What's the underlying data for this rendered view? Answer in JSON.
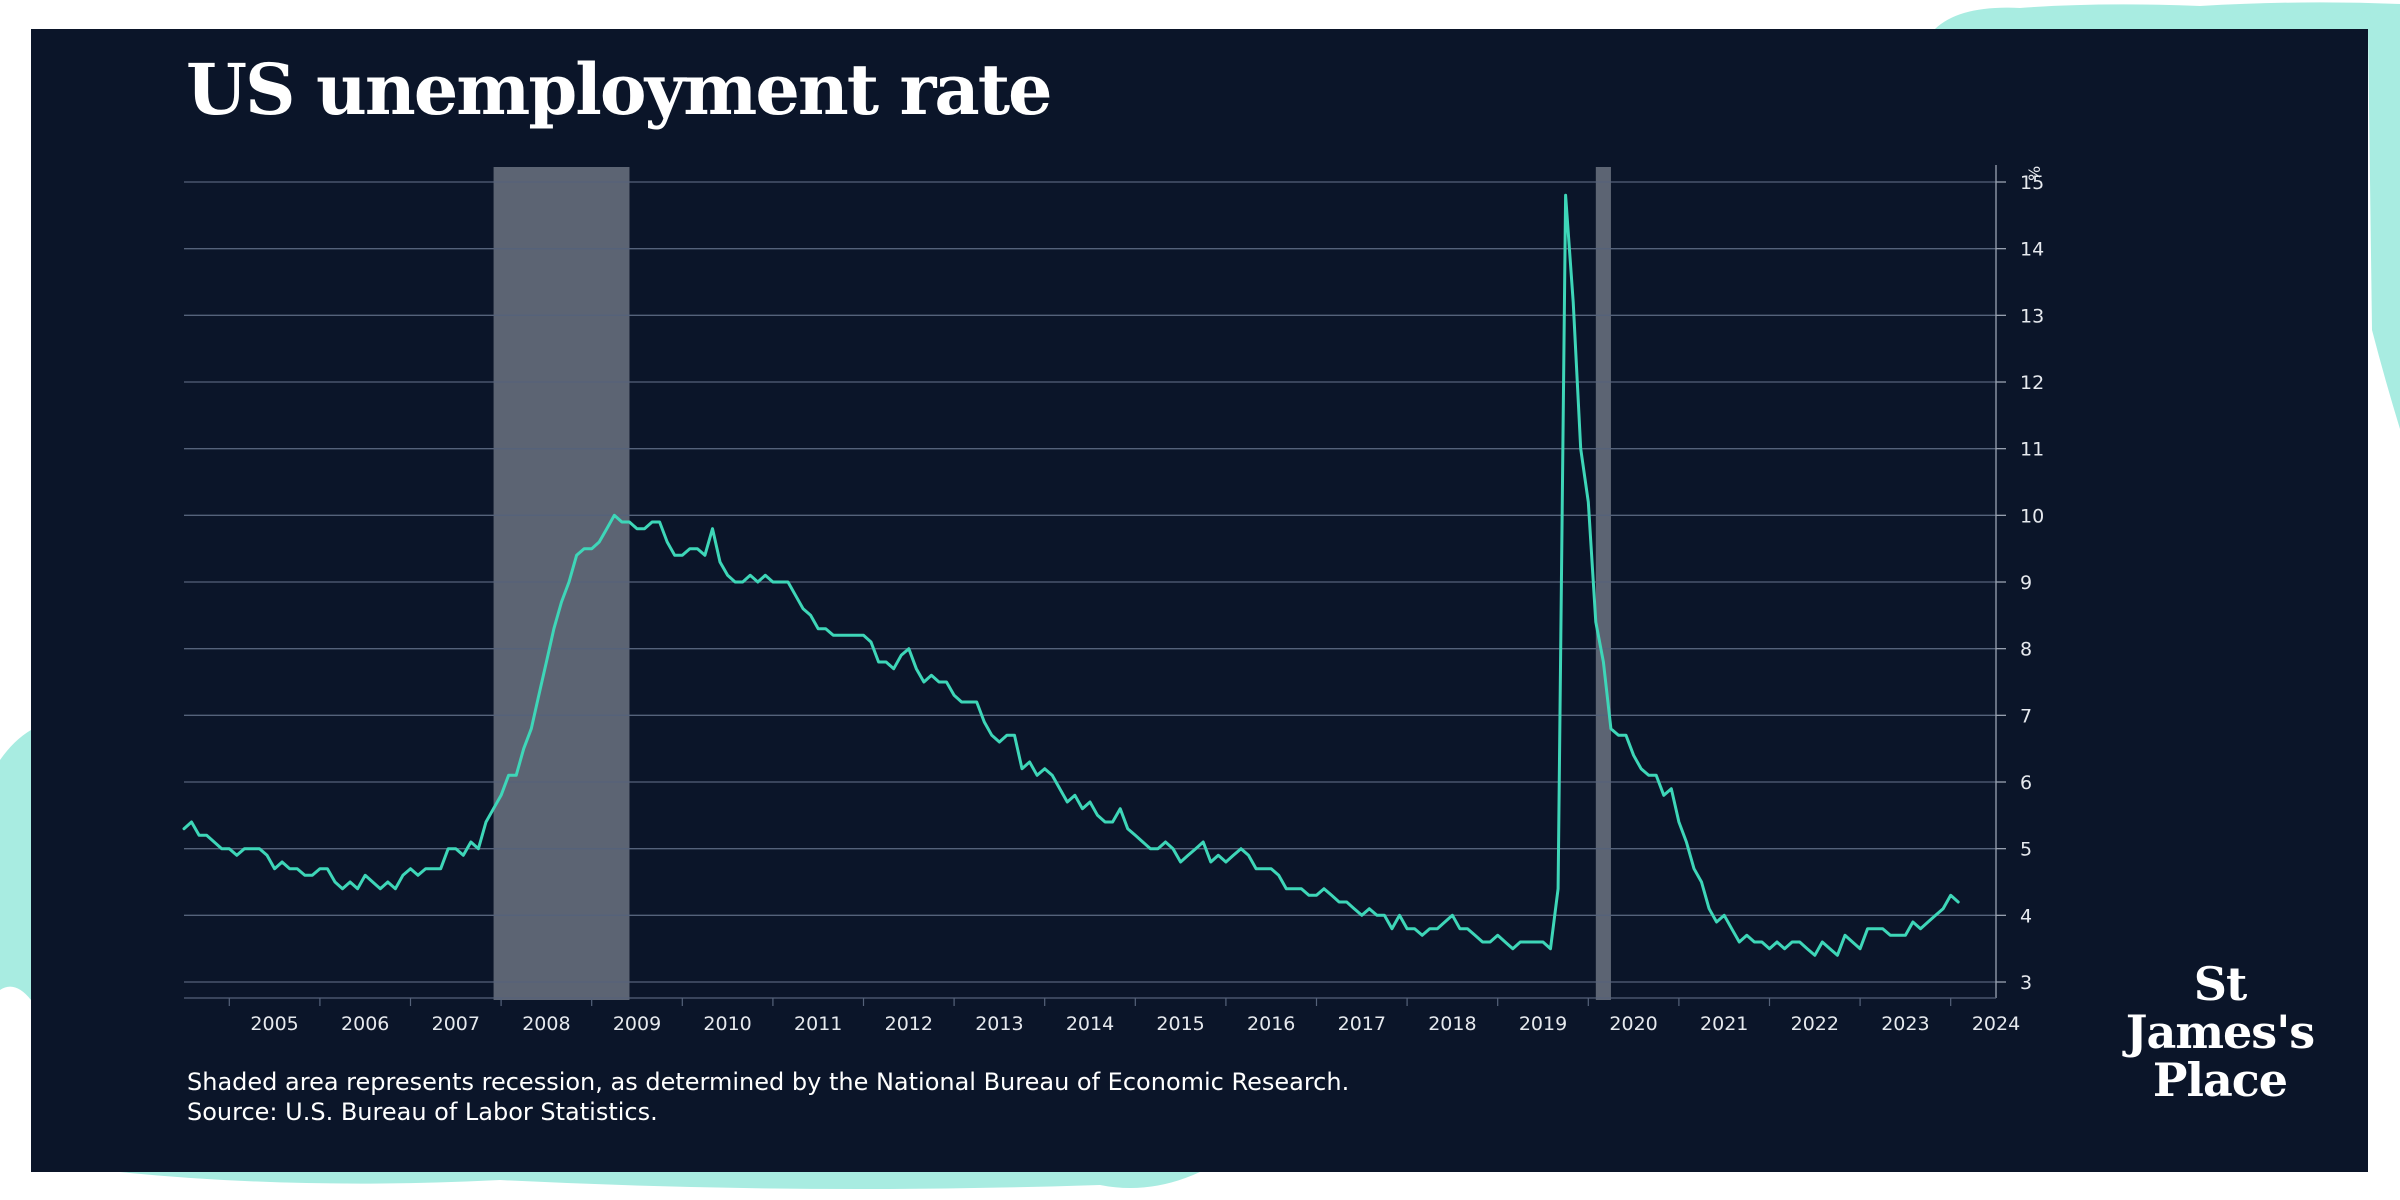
{
  "title": "US unemployment rate",
  "footnote": {
    "line1": "Shaded area represents recession, as determined by the National Bureau of Economic Research.",
    "line2": "Source: U.S. Bureau of Labor Statistics."
  },
  "logo": {
    "line1": "St",
    "line2": "James's",
    "line3": "Place"
  },
  "colors": {
    "background": "#0b1529",
    "line": "#3ed6b8",
    "recession": "#6b7280",
    "text": "#ffffff",
    "accent": "#a8ece1"
  },
  "chart_data": {
    "type": "line",
    "title": "US unemployment rate",
    "xlabel": "",
    "ylabel": "%",
    "ylim": [
      3,
      15
    ],
    "xlim": [
      2004.5,
      2024.5
    ],
    "y_ticks": [
      3,
      4,
      5,
      6,
      7,
      8,
      9,
      10,
      11,
      12,
      13,
      14,
      15
    ],
    "x_ticks": [
      "2005",
      "2006",
      "2007",
      "2008",
      "2009",
      "2010",
      "2011",
      "2012",
      "2013",
      "2014",
      "2015",
      "2016",
      "2017",
      "2018",
      "2019",
      "2020",
      "2021",
      "2022",
      "2023",
      "2024"
    ],
    "y_axis_position": "right",
    "grid": true,
    "recessions": [
      {
        "start": 2007.917,
        "end": 2009.417
      },
      {
        "start": 2020.083,
        "end": 2020.25
      }
    ],
    "series": [
      {
        "name": "US unemployment rate",
        "start": 2004.5,
        "step": 0.0833333,
        "values": [
          5.3,
          5.4,
          5.2,
          5.2,
          5.1,
          5.0,
          5.0,
          4.9,
          5.0,
          5.0,
          5.0,
          4.9,
          4.7,
          4.8,
          4.7,
          4.7,
          4.6,
          4.6,
          4.7,
          4.7,
          4.5,
          4.4,
          4.5,
          4.4,
          4.6,
          4.5,
          4.4,
          4.5,
          4.4,
          4.6,
          4.7,
          4.6,
          4.7,
          4.7,
          4.7,
          5.0,
          5.0,
          4.9,
          5.1,
          5.0,
          5.4,
          5.6,
          5.8,
          6.1,
          6.1,
          6.5,
          6.8,
          7.3,
          7.8,
          8.3,
          8.7,
          9.0,
          9.4,
          9.5,
          9.5,
          9.6,
          9.8,
          10.0,
          9.9,
          9.9,
          9.8,
          9.8,
          9.9,
          9.9,
          9.6,
          9.4,
          9.4,
          9.5,
          9.5,
          9.4,
          9.8,
          9.3,
          9.1,
          9.0,
          9.0,
          9.1,
          9.0,
          9.1,
          9.0,
          9.0,
          9.0,
          8.8,
          8.6,
          8.5,
          8.3,
          8.3,
          8.2,
          8.2,
          8.2,
          8.2,
          8.2,
          8.1,
          7.8,
          7.8,
          7.7,
          7.9,
          8.0,
          7.7,
          7.5,
          7.6,
          7.5,
          7.5,
          7.3,
          7.2,
          7.2,
          7.2,
          6.9,
          6.7,
          6.6,
          6.7,
          6.7,
          6.2,
          6.3,
          6.1,
          6.2,
          6.1,
          5.9,
          5.7,
          5.8,
          5.6,
          5.7,
          5.5,
          5.4,
          5.4,
          5.6,
          5.3,
          5.2,
          5.1,
          5.0,
          5.0,
          5.1,
          5.0,
          4.8,
          4.9,
          5.0,
          5.1,
          4.8,
          4.9,
          4.8,
          4.9,
          5.0,
          4.9,
          4.7,
          4.7,
          4.7,
          4.6,
          4.4,
          4.4,
          4.4,
          4.3,
          4.3,
          4.4,
          4.3,
          4.2,
          4.2,
          4.1,
          4.0,
          4.1,
          4.0,
          4.0,
          3.8,
          4.0,
          3.8,
          3.8,
          3.7,
          3.8,
          3.8,
          3.9,
          4.0,
          3.8,
          3.8,
          3.7,
          3.6,
          3.6,
          3.7,
          3.6,
          3.5,
          3.6,
          3.6,
          3.6,
          3.6,
          3.5,
          4.4,
          14.8,
          13.2,
          11.0,
          10.2,
          8.4,
          7.8,
          6.8,
          6.7,
          6.7,
          6.4,
          6.2,
          6.1,
          6.1,
          5.8,
          5.9,
          5.4,
          5.1,
          4.7,
          4.5,
          4.1,
          3.9,
          4.0,
          3.8,
          3.6,
          3.7,
          3.6,
          3.6,
          3.5,
          3.6,
          3.5,
          3.6,
          3.6,
          3.5,
          3.4,
          3.6,
          3.5,
          3.4,
          3.7,
          3.6,
          3.5,
          3.8,
          3.8,
          3.8,
          3.7,
          3.7,
          3.7,
          3.9,
          3.8,
          3.9,
          4.0,
          4.1,
          4.3,
          4.2
        ]
      }
    ]
  }
}
